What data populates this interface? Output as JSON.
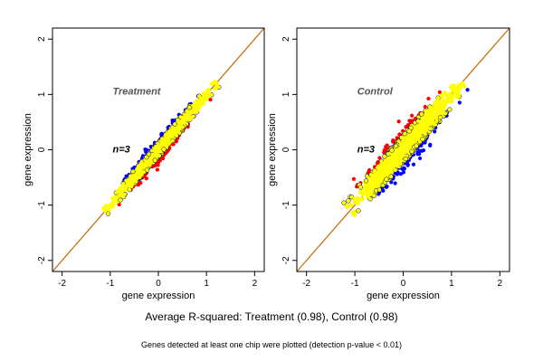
{
  "chart_data": [
    {
      "type": "scatter",
      "title": "",
      "annotation_group": "Treatment",
      "annotation_n": "n=3",
      "xlabel": "gene expression",
      "ylabel": "gene expression",
      "xlim": [
        -2.2,
        2.2
      ],
      "ylim": [
        -2.2,
        2.2
      ],
      "xticks": [
        "-2",
        "-1",
        "0",
        "1",
        "2"
      ],
      "yticks": [
        "-2",
        "-1",
        "0",
        "1",
        "2"
      ],
      "grid": false,
      "reference_line": {
        "slope": 1,
        "intercept": 0,
        "color": "#cc6600"
      },
      "cloud": {
        "center": [
          0.05,
          0.05
        ],
        "x_range": [
          -1.1,
          1.2
        ],
        "spread": 0.09
      },
      "outliers": {
        "red_side": "below",
        "blue_side": "above"
      }
    },
    {
      "type": "scatter",
      "title": "",
      "annotation_group": "Control",
      "annotation_n": "n=3",
      "xlabel": "gene expression",
      "ylabel": "gene expression",
      "xlim": [
        -2.2,
        2.2
      ],
      "ylim": [
        -2.2,
        2.2
      ],
      "xticks": [
        "-2",
        "-1",
        "0",
        "1",
        "2"
      ],
      "yticks": [
        "-2",
        "-1",
        "0",
        "1",
        "2"
      ],
      "grid": false,
      "reference_line": {
        "slope": 1,
        "intercept": 0,
        "color": "#cc6600"
      },
      "cloud": {
        "center": [
          0.05,
          0.1
        ],
        "x_range": [
          -1.1,
          1.2
        ],
        "spread": 0.17
      },
      "outliers": {
        "red_side": "above",
        "blue_side": "below"
      }
    }
  ],
  "colors": {
    "points": "#ffff00",
    "outline": "#000080",
    "outlier_up": "#0000ff",
    "outlier_down": "#ff0000",
    "line": "#cc6600"
  },
  "caption": {
    "main": "Average R-squared: Treatment (0.98), Control (0.98)",
    "note": "Genes detected at least one chip were plotted (detection p-value < 0.01)"
  }
}
